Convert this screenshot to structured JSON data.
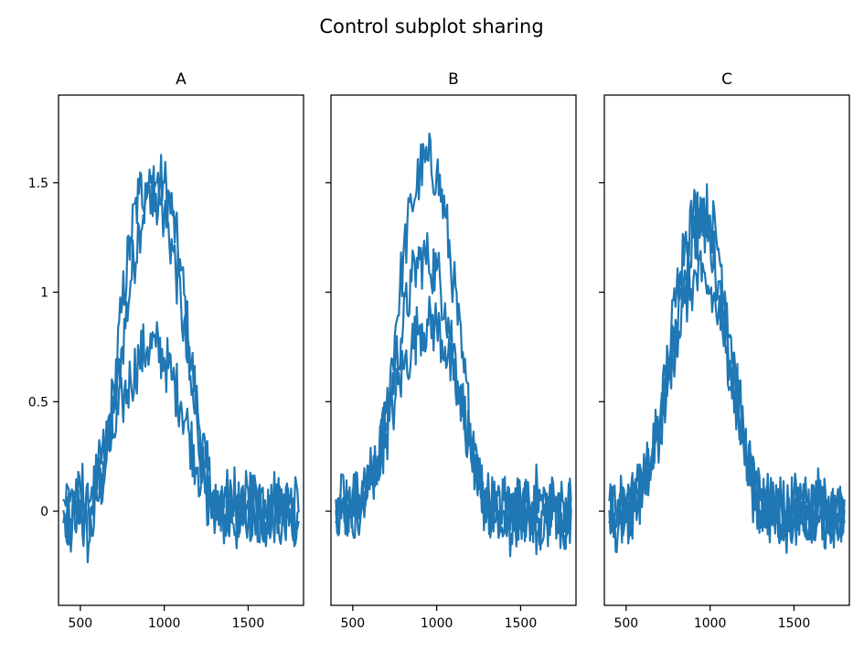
{
  "chart_data": {
    "type": "line",
    "title": "Control subplot sharing",
    "sharey": true,
    "line_color": "#1f77b4",
    "panels": [
      {
        "title": "A",
        "xlim": [
          370,
          1830
        ],
        "ylim": [
          -0.43,
          1.9
        ],
        "xticks": [
          500,
          1000,
          1500
        ],
        "yticks": [
          0.0,
          0.5,
          1.0,
          1.5
        ],
        "show_ytick_labels": true,
        "series": [
          {
            "x": [
              400,
              450,
              500,
              550,
              600,
              650,
              700,
              750,
              800,
              850,
              900,
              950,
              1000,
              1050,
              1100,
              1150,
              1200,
              1250,
              1300,
              1350,
              1400,
              1450,
              1500,
              1550,
              1600,
              1650,
              1700,
              1750,
              1800
            ],
            "y": [
              -0.05,
              -0.1,
              0.05,
              -0.15,
              0.05,
              0.2,
              0.45,
              0.75,
              1.05,
              1.3,
              1.45,
              1.5,
              1.5,
              1.35,
              1.1,
              0.75,
              0.45,
              0.2,
              0.05,
              -0.05,
              0.0,
              -0.1,
              0.05,
              0.0,
              -0.1,
              0.05,
              0.0,
              -0.05,
              0.0
            ]
          },
          {
            "x": [
              400,
              450,
              500,
              550,
              600,
              650,
              700,
              750,
              800,
              850,
              900,
              950,
              1000,
              1050,
              1100,
              1150,
              1200,
              1250,
              1300,
              1350,
              1400,
              1450,
              1500,
              1550,
              1600,
              1650,
              1700,
              1750,
              1800
            ],
            "y": [
              0.05,
              0.1,
              -0.05,
              0.0,
              0.15,
              0.3,
              0.55,
              0.95,
              1.25,
              1.45,
              1.5,
              1.45,
              1.35,
              1.2,
              0.95,
              0.6,
              0.35,
              0.1,
              -0.1,
              0.05,
              0.1,
              0.0,
              -0.05,
              0.1,
              0.05,
              -0.05,
              0.1,
              0.0,
              -0.05
            ]
          },
          {
            "x": [
              400,
              450,
              500,
              550,
              600,
              650,
              700,
              750,
              800,
              850,
              900,
              950,
              1000,
              1050,
              1100,
              1150,
              1200,
              1250,
              1300,
              1350,
              1400,
              1450,
              1500,
              1550,
              1600,
              1650,
              1700,
              1750,
              1800
            ],
            "y": [
              0.0,
              -0.05,
              0.1,
              0.05,
              0.1,
              0.25,
              0.35,
              0.5,
              0.6,
              0.7,
              0.75,
              0.75,
              0.7,
              0.6,
              0.5,
              0.35,
              0.2,
              0.1,
              0.0,
              0.05,
              -0.05,
              0.0,
              0.1,
              0.0,
              -0.05,
              0.05,
              -0.1,
              0.05,
              0.0
            ]
          }
        ]
      },
      {
        "title": "B",
        "xlim": [
          370,
          1830
        ],
        "ylim": [
          -0.43,
          1.9
        ],
        "xticks": [
          500,
          1000,
          1500
        ],
        "yticks": [
          0.0,
          0.5,
          1.0,
          1.5
        ],
        "show_ytick_labels": false,
        "series": [
          {
            "x": [
              400,
              450,
              500,
              550,
              600,
              650,
              700,
              750,
              800,
              850,
              900,
              950,
              1000,
              1050,
              1100,
              1150,
              1200,
              1250,
              1300,
              1350,
              1400,
              1450,
              1500,
              1550,
              1600,
              1650,
              1700,
              1750,
              1800
            ],
            "y": [
              0.0,
              0.05,
              -0.1,
              0.05,
              0.1,
              0.2,
              0.45,
              0.8,
              1.15,
              1.4,
              1.55,
              1.6,
              1.55,
              1.35,
              1.05,
              0.7,
              0.4,
              0.15,
              0.05,
              -0.05,
              0.0,
              -0.15,
              0.05,
              0.0,
              -0.1,
              0.05,
              0.0,
              -0.05,
              0.0
            ]
          },
          {
            "x": [
              400,
              450,
              500,
              550,
              600,
              650,
              700,
              750,
              800,
              850,
              900,
              950,
              1000,
              1050,
              1100,
              1150,
              1200,
              1250,
              1300,
              1350,
              1400,
              1450,
              1500,
              1550,
              1600,
              1650,
              1700,
              1750,
              1800
            ],
            "y": [
              0.05,
              -0.05,
              0.1,
              0.0,
              0.15,
              0.25,
              0.4,
              0.65,
              0.85,
              1.05,
              1.15,
              1.15,
              1.1,
              0.95,
              0.75,
              0.5,
              0.3,
              0.1,
              0.0,
              0.05,
              -0.1,
              0.05,
              0.0,
              -0.05,
              0.1,
              -0.05,
              0.0,
              0.05,
              0.0
            ]
          },
          {
            "x": [
              400,
              450,
              500,
              550,
              600,
              650,
              700,
              750,
              800,
              850,
              900,
              950,
              1000,
              1050,
              1100,
              1150,
              1200,
              1250,
              1300,
              1350,
              1400,
              1450,
              1500,
              1550,
              1600,
              1650,
              1700,
              1750,
              1800
            ],
            "y": [
              -0.05,
              0.0,
              0.05,
              0.05,
              0.1,
              0.25,
              0.35,
              0.5,
              0.65,
              0.75,
              0.85,
              0.85,
              0.85,
              0.75,
              0.6,
              0.45,
              0.3,
              0.15,
              0.05,
              0.0,
              0.05,
              -0.05,
              0.0,
              0.05,
              -0.05,
              0.0,
              0.05,
              -0.1,
              0.05
            ]
          }
        ]
      },
      {
        "title": "C",
        "xlim": [
          370,
          1830
        ],
        "ylim": [
          -0.43,
          1.9
        ],
        "xticks": [
          500,
          1000,
          1500
        ],
        "yticks": [
          0.0,
          0.5,
          1.0,
          1.5
        ],
        "show_ytick_labels": false,
        "series": [
          {
            "x": [
              400,
              450,
              500,
              550,
              600,
              650,
              700,
              750,
              800,
              850,
              900,
              950,
              1000,
              1050,
              1100,
              1150,
              1200,
              1250,
              1300,
              1350,
              1400,
              1450,
              1500,
              1550,
              1600,
              1650,
              1700,
              1750,
              1800
            ],
            "y": [
              0.0,
              -0.1,
              0.05,
              0.0,
              0.1,
              0.2,
              0.4,
              0.7,
              1.0,
              1.25,
              1.35,
              1.4,
              1.35,
              1.2,
              0.95,
              0.65,
              0.35,
              0.15,
              0.05,
              -0.05,
              0.0,
              -0.1,
              0.05,
              0.0,
              -0.05,
              0.05,
              -0.1,
              0.0,
              0.0
            ]
          },
          {
            "x": [
              400,
              450,
              500,
              550,
              600,
              650,
              700,
              750,
              800,
              850,
              900,
              950,
              1000,
              1050,
              1100,
              1150,
              1200,
              1250,
              1300,
              1350,
              1400,
              1450,
              1500,
              1550,
              1600,
              1650,
              1700,
              1750,
              1800
            ],
            "y": [
              0.05,
              0.0,
              -0.05,
              0.1,
              0.1,
              0.25,
              0.4,
              0.6,
              0.8,
              0.95,
              1.05,
              1.05,
              1.0,
              0.9,
              0.75,
              0.5,
              0.3,
              0.1,
              0.0,
              0.05,
              -0.05,
              0.0,
              0.05,
              -0.05,
              0.0,
              0.1,
              0.0,
              -0.05,
              0.05
            ]
          },
          {
            "x": [
              400,
              450,
              500,
              550,
              600,
              650,
              700,
              750,
              800,
              850,
              900,
              950,
              1000,
              1050,
              1100,
              1150,
              1200,
              1250,
              1300,
              1350,
              1400,
              1450,
              1500,
              1550,
              1600,
              1650,
              1700,
              1750,
              1800
            ],
            "y": [
              -0.05,
              0.05,
              0.0,
              0.05,
              0.15,
              0.2,
              0.35,
              0.6,
              0.85,
              1.1,
              1.25,
              1.3,
              1.25,
              1.05,
              0.8,
              0.55,
              0.3,
              0.1,
              0.0,
              -0.05,
              0.05,
              0.0,
              -0.05,
              0.05,
              0.0,
              -0.05,
              0.05,
              0.0,
              -0.05
            ]
          }
        ]
      }
    ]
  }
}
